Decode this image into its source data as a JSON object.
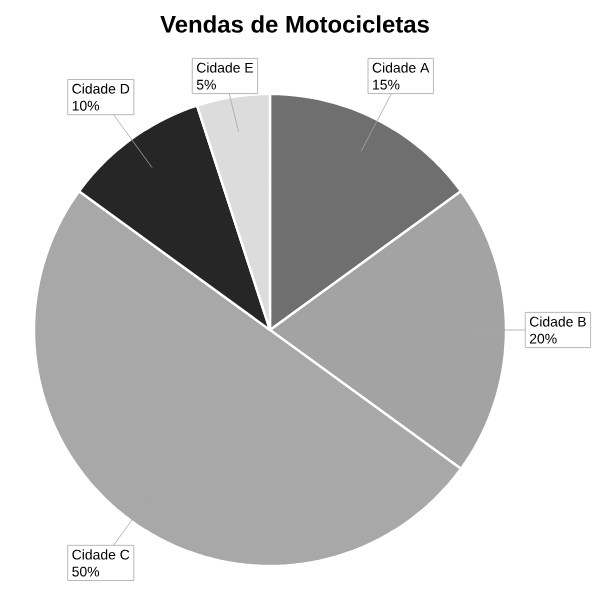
{
  "chart_data": {
    "type": "pie",
    "title": "Vendas de Motocicletas",
    "categories": [
      "Cidade A",
      "Cidade B",
      "Cidade C",
      "Cidade D",
      "Cidade E"
    ],
    "values": [
      15,
      20,
      50,
      10,
      5
    ],
    "value_labels": [
      "15%",
      "20%",
      "50%",
      "10%",
      "5%"
    ],
    "colors": [
      "#6f6f6f",
      "#a3a3a3",
      "#a8a8a8",
      "#262626",
      "#dcdcdc"
    ]
  }
}
